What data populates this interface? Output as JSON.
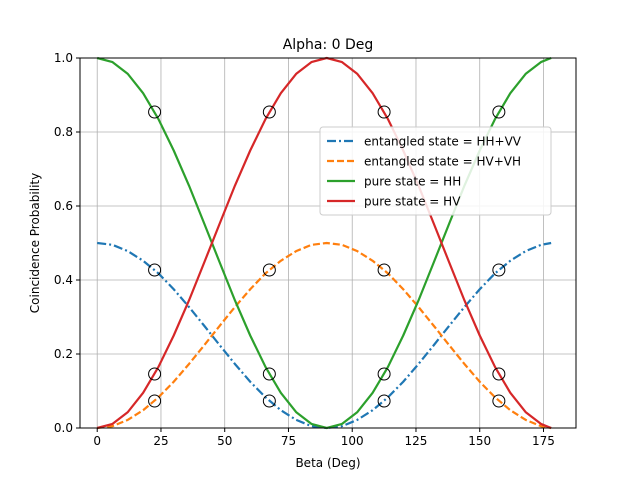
{
  "chart_data": {
    "type": "line",
    "title": "Alpha: 0 Deg",
    "xlabel": "Beta (Deg)",
    "ylabel": "Coincidence Probability",
    "xlim": [
      -6.75,
      187.75
    ],
    "ylim": [
      0.0,
      1.0
    ],
    "xticks": [
      0,
      25,
      50,
      75,
      100,
      125,
      150,
      175
    ],
    "yticks": [
      0.0,
      0.2,
      0.4,
      0.6,
      0.8,
      1.0
    ],
    "xtick_labels": [
      "0",
      "25",
      "50",
      "75",
      "100",
      "125",
      "150",
      "175"
    ],
    "ytick_labels": [
      "0.0",
      "0.2",
      "0.4",
      "0.6",
      "0.8",
      "1.0"
    ],
    "grid": true,
    "legend_position": "upper right (inside, slightly below top)",
    "x": [
      0,
      6,
      12,
      18,
      24,
      30,
      36,
      42,
      48,
      54,
      60,
      66,
      72,
      78,
      84,
      90,
      96,
      102,
      108,
      114,
      120,
      126,
      132,
      138,
      144,
      150,
      156,
      162,
      168,
      174,
      178
    ],
    "series": [
      {
        "name": "entangled state = HH+VV",
        "color": "#1f77b4",
        "style": "dashdot",
        "values": [
          0.5,
          0.495,
          0.478,
          0.452,
          0.418,
          0.375,
          0.327,
          0.276,
          0.224,
          0.173,
          0.125,
          0.083,
          0.048,
          0.022,
          0.005,
          0.0,
          0.005,
          0.022,
          0.048,
          0.083,
          0.125,
          0.173,
          0.224,
          0.276,
          0.327,
          0.375,
          0.418,
          0.452,
          0.478,
          0.495,
          0.5
        ]
      },
      {
        "name": "entangled state = HV+VH",
        "color": "#ff7f0e",
        "style": "dashed",
        "values": [
          0.0,
          0.005,
          0.022,
          0.048,
          0.083,
          0.125,
          0.173,
          0.224,
          0.276,
          0.327,
          0.375,
          0.418,
          0.452,
          0.478,
          0.495,
          0.5,
          0.495,
          0.478,
          0.452,
          0.418,
          0.375,
          0.327,
          0.276,
          0.224,
          0.173,
          0.125,
          0.083,
          0.048,
          0.022,
          0.005,
          0.0
        ]
      },
      {
        "name": "pure state = HH",
        "color": "#2ca02c",
        "style": "solid",
        "values": [
          1.0,
          0.989,
          0.957,
          0.905,
          0.835,
          0.75,
          0.655,
          0.552,
          0.448,
          0.345,
          0.25,
          0.165,
          0.095,
          0.043,
          0.011,
          0.0,
          0.011,
          0.043,
          0.095,
          0.165,
          0.25,
          0.345,
          0.448,
          0.552,
          0.655,
          0.75,
          0.835,
          0.905,
          0.957,
          0.989,
          1.0
        ]
      },
      {
        "name": "pure state = HV",
        "color": "#d62728",
        "style": "solid",
        "values": [
          0.0,
          0.011,
          0.043,
          0.095,
          0.165,
          0.25,
          0.345,
          0.448,
          0.552,
          0.655,
          0.75,
          0.835,
          0.905,
          0.957,
          0.989,
          1.0,
          0.989,
          0.957,
          0.905,
          0.835,
          0.75,
          0.655,
          0.552,
          0.448,
          0.345,
          0.25,
          0.165,
          0.095,
          0.043,
          0.011,
          0.0
        ]
      }
    ],
    "markers": {
      "style": "open-circle",
      "x": [
        22.5,
        67.5,
        112.5,
        157.5
      ],
      "y": [
        0.854,
        0.427,
        0.146,
        0.073
      ]
    }
  }
}
